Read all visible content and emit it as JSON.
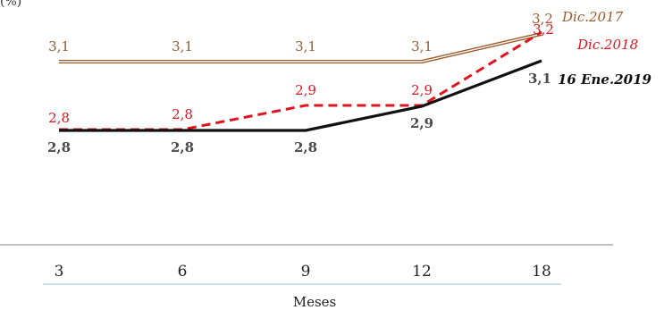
{
  "chart_data": {
    "type": "line",
    "unit_label": "(%)",
    "xlabel": "Meses",
    "categories": [
      "3",
      "6",
      "9",
      "12",
      "18"
    ],
    "ylim": [
      0,
      3.3
    ],
    "grid": false,
    "series": [
      {
        "name": "Dic.2017",
        "values": [
          3.1,
          3.1,
          3.1,
          3.1,
          3.2
        ],
        "labels": [
          "3,1",
          "3,1",
          "3,1",
          "3,1",
          "3,2"
        ],
        "color": "#9b5a2a",
        "style": "double-line"
      },
      {
        "name": "Dic.2018",
        "values": [
          2.8,
          2.8,
          2.9,
          2.9,
          3.2
        ],
        "labels": [
          "2,8",
          "2,8",
          "2,9",
          "2,9",
          "3,2"
        ],
        "color": "#e0141e",
        "style": "dashed"
      },
      {
        "name": "16 Ene.2019",
        "values": [
          2.8,
          2.8,
          2.8,
          2.9,
          3.1
        ],
        "labels": [
          "2,8",
          "2,8",
          "2,8",
          "2,9",
          "3,1"
        ],
        "color": "#111111",
        "label_color": "#4a4a4a",
        "style": "solid-bold"
      }
    ]
  }
}
